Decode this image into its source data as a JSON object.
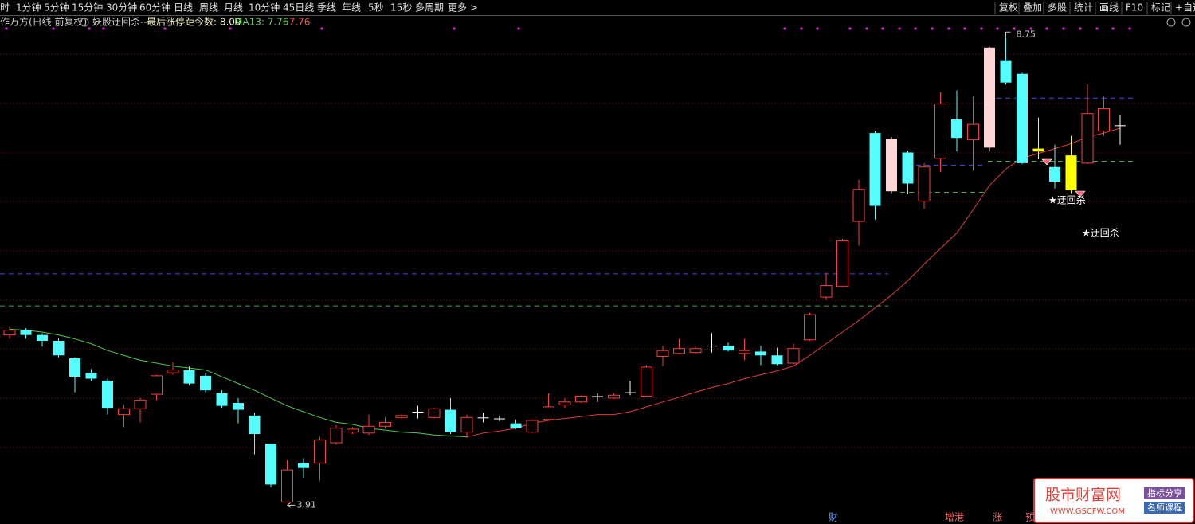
{
  "toolbar": {
    "left": [
      "时",
      "1分钟",
      "5分钟",
      "15分钟",
      "30分钟",
      "60分钟",
      "日线",
      "周线",
      "月线",
      "10分钟",
      "45日线",
      "季线",
      "年线",
      "5秒",
      "15秒",
      "多周期",
      "更多 >"
    ],
    "right": [
      "复权",
      "叠加",
      "多股",
      "统计",
      "画线",
      "F10",
      "标记",
      "+自选"
    ]
  },
  "header": {
    "stock": "作万方(日线 前复权)",
    "indicator": "妖股迂回杀--",
    "limit_up": "最后涨停距今数: 8.00",
    "ma": "MA13: 7.76",
    "ma_extra": "· 7.76"
  },
  "chart_data": {
    "type": "candlestick",
    "open": [
      5.63,
      5.68,
      5.63,
      5.57,
      5.39,
      5.24,
      5.16,
      4.81,
      4.87,
      5.02,
      5.24,
      5.27,
      5.21,
      5.03,
      4.93,
      4.8,
      4.51,
      3.91,
      4.31,
      4.31,
      4.52,
      4.63,
      4.62,
      4.69,
      4.78,
      4.83,
      4.78,
      4.86,
      4.63,
      4.78,
      4.77,
      4.72,
      4.63,
      4.76,
      4.91,
      4.94,
      5.0,
      4.98,
      5.04,
      5.0,
      5.41,
      5.44,
      5.45,
      5.52,
      5.52,
      5.44,
      5.46,
      5.42,
      5.34,
      5.58,
      6.02,
      6.13,
      6.8,
      7.71,
      7.11,
      7.51,
      7.01,
      7.45,
      7.85,
      7.64,
      7.56,
      8.46,
      8.32,
      7.55,
      7.36,
      7.48,
      7.4,
      7.73,
      7.79
    ],
    "high": [
      5.72,
      5.7,
      5.65,
      5.6,
      5.4,
      5.28,
      5.18,
      4.91,
      4.98,
      5.22,
      5.35,
      5.31,
      5.24,
      5.06,
      4.98,
      4.83,
      4.5,
      4.34,
      4.36,
      4.58,
      4.7,
      4.68,
      4.81,
      4.78,
      4.81,
      4.9,
      4.88,
      4.98,
      4.81,
      4.83,
      4.8,
      4.76,
      4.76,
      5.03,
      4.98,
      5.01,
      5.03,
      5.03,
      5.16,
      5.32,
      5.52,
      5.59,
      5.51,
      5.65,
      5.55,
      5.59,
      5.52,
      5.5,
      5.54,
      5.86,
      6.27,
      6.62,
      7.23,
      7.73,
      7.67,
      7.53,
      7.4,
      8.13,
      8.15,
      8.09,
      8.6,
      8.75,
      8.33,
      7.87,
      7.59,
      7.68,
      8.21,
      8.09,
      7.9
    ],
    "low": [
      5.59,
      5.59,
      5.51,
      5.4,
      5.04,
      5.16,
      4.81,
      4.68,
      4.73,
      4.96,
      5.22,
      5.11,
      5.04,
      4.88,
      4.72,
      4.4,
      4.06,
      3.91,
      4.16,
      4.13,
      4.5,
      4.61,
      4.6,
      4.67,
      4.77,
      4.77,
      4.77,
      4.61,
      4.57,
      4.73,
      4.74,
      4.66,
      4.62,
      4.75,
      4.88,
      4.93,
      4.94,
      4.97,
      5.01,
      5.0,
      5.31,
      5.43,
      5.44,
      5.45,
      5.46,
      5.37,
      5.32,
      5.32,
      5.33,
      5.57,
      5.99,
      6.12,
      6.55,
      6.82,
      7.09,
      7.08,
      6.93,
      7.31,
      7.52,
      7.32,
      7.52,
      8.21,
      7.39,
      7.44,
      7.14,
      7.09,
      7.39,
      7.68,
      7.59
    ],
    "close": [
      5.68,
      5.63,
      5.57,
      5.42,
      5.2,
      5.18,
      4.88,
      4.87,
      4.96,
      5.21,
      5.27,
      5.13,
      5.06,
      4.9,
      4.86,
      4.61,
      4.09,
      4.24,
      4.26,
      4.55,
      4.67,
      4.66,
      4.69,
      4.73,
      4.8,
      4.84,
      4.87,
      4.63,
      4.78,
      4.78,
      4.77,
      4.67,
      4.75,
      4.89,
      4.94,
      5.0,
      5.0,
      5.01,
      5.04,
      5.3,
      5.47,
      5.49,
      5.49,
      5.52,
      5.47,
      5.47,
      5.42,
      5.33,
      5.49,
      5.84,
      6.14,
      6.6,
      7.13,
      6.96,
      7.65,
      7.19,
      7.36,
      8.01,
      7.66,
      7.8,
      8.59,
      8.23,
      7.4,
      7.52,
      7.21,
      7.12,
      7.91,
      7.96,
      7.79
    ],
    "colors": [
      "#ff3b3b",
      "#54fcfc",
      "#54fcfc",
      "#54fcfc",
      "#54fcfc",
      "#54fcfc",
      "#54fcfc",
      "#ff3b3b",
      "#ff3b3b",
      "#ff3b3b",
      "#ff3b3b",
      "#54fcfc",
      "#54fcfc",
      "#54fcfc",
      "#54fcfc",
      "#54fcfc",
      "#54fcfc",
      "#ff3b3b",
      "#54fcfc",
      "#ff3b3b",
      "#ff3b3b",
      "#ff3b3b",
      "#ff3b3b",
      "#ff3b3b",
      "#ff3b3b",
      "#ffffff",
      "#ff3b3b",
      "#54fcfc",
      "#ff3b3b",
      "#ffffff",
      "#ffffff",
      "#54fcfc",
      "#ff3b3b",
      "#ff3b3b",
      "#ff3b3b",
      "#ff3b3b",
      "#ffffff",
      "#ff3b3b",
      "#ffffff",
      "#ff3b3b",
      "#ff3b3b",
      "#ff3b3b",
      "#ff3b3b",
      "#ffffff",
      "#54fcfc",
      "#ff3b3b",
      "#54fcfc",
      "#54fcfc",
      "#ff3b3b",
      "#ff3b3b",
      "#ff3b3b",
      "#ff3b3b",
      "#ff3b3b",
      "#54fcfc",
      "#ffd6d6",
      "#54fcfc",
      "#ff3b3b",
      "#ff3b3b",
      "#54fcfc",
      "#ff3b3b",
      "#ffd6d6",
      "#54fcfc",
      "#54fcfc",
      "#ffff00",
      "#54fcfc",
      "#ffff00",
      "#ff3b3b",
      "#ff3b3b",
      "#ffffff"
    ],
    "hollow_color": "#ff3b3b",
    "ma": {
      "name": "MA13",
      "color_up": "#e03c3c",
      "color_down": "#4fc84f",
      "values": [
        5.69,
        5.68,
        5.66,
        5.63,
        5.59,
        5.54,
        5.47,
        5.42,
        5.37,
        5.34,
        5.31,
        5.29,
        5.27,
        5.2,
        5.13,
        5.06,
        4.98,
        4.9,
        4.84,
        4.78,
        4.73,
        4.71,
        4.67,
        4.65,
        4.63,
        4.62,
        4.6,
        4.59,
        4.58,
        4.62,
        4.64,
        4.67,
        4.72,
        4.75,
        4.77,
        4.79,
        4.81,
        4.81,
        4.84,
        4.89,
        4.94,
        4.99,
        5.04,
        5.09,
        5.13,
        5.18,
        5.22,
        5.26,
        5.31,
        5.42,
        5.54,
        5.66,
        5.78,
        5.91,
        6.04,
        6.19,
        6.36,
        6.52,
        6.68,
        6.92,
        7.17,
        7.34,
        7.45,
        7.5,
        7.55,
        7.6,
        7.67,
        7.71,
        7.76
      ]
    },
    "levels": [
      {
        "value": 6.26,
        "color": "#4848d8"
      },
      {
        "value": 5.93,
        "color": "#3cb03c"
      },
      {
        "value": 7.38,
        "color": "#4848d8"
      },
      {
        "value": 7.1,
        "color": "#3cb03c"
      },
      {
        "value": 8.07,
        "color": "#4848d8"
      },
      {
        "value": 7.42,
        "color": "#3cb03c"
      }
    ],
    "max_label": 8.75,
    "min_label": 3.91,
    "ylim": [
      3.79,
      8.9
    ],
    "annotations": [
      "★迂回杀",
      "★迂回杀"
    ]
  },
  "footer": [
    "财",
    "增港",
    "涨",
    "预"
  ],
  "watermark": {
    "title": "股市财富网",
    "url": "WWW.GSCFW.COM",
    "tag1": "指标分享",
    "tag2": "名师课程"
  }
}
